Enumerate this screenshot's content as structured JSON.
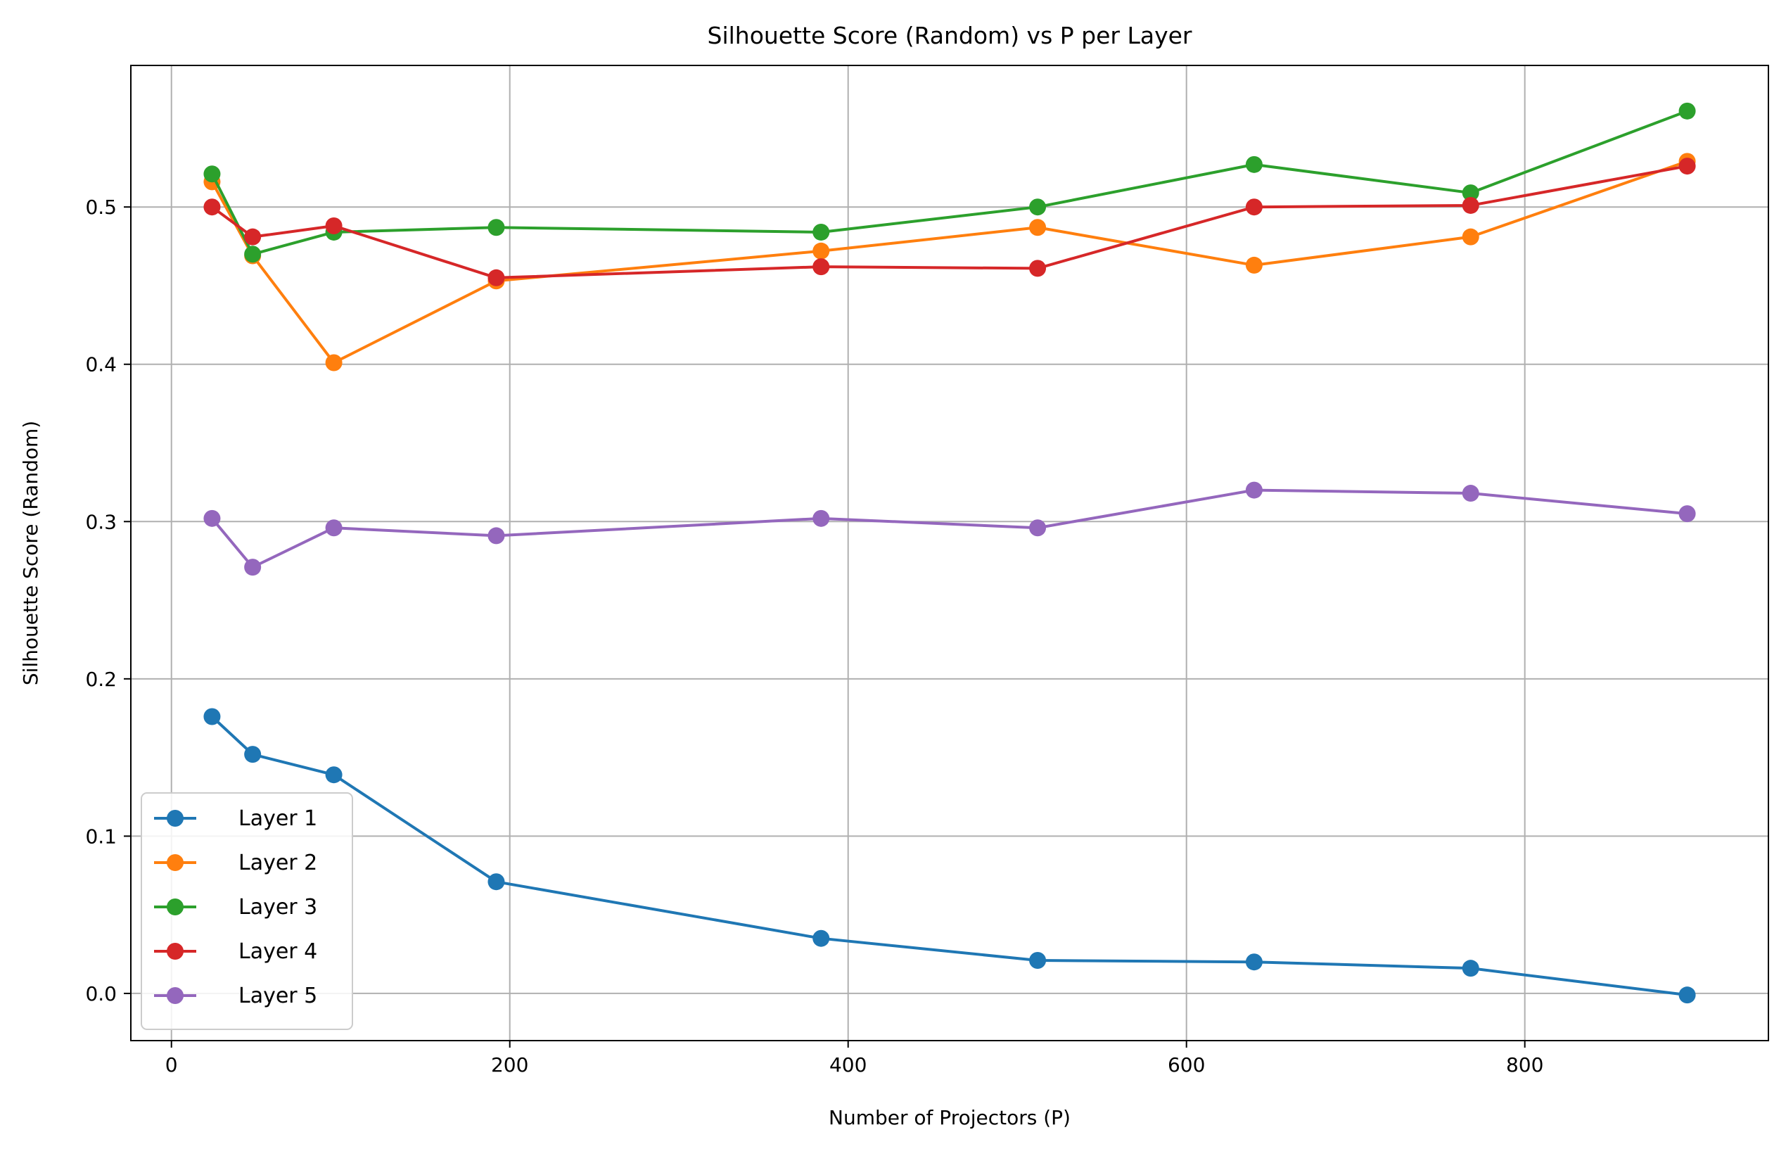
{
  "chart_data": {
    "type": "line",
    "title": "Silhouette Score (Random) vs P per Layer",
    "xlabel": "Number of Projectors (P)",
    "ylabel": "Silhouette Score (Random)",
    "xlim": [
      -24,
      944
    ],
    "ylim": [
      -0.03,
      0.59
    ],
    "xticks": [
      0,
      200,
      400,
      600,
      800
    ],
    "yticks": [
      0.0,
      0.1,
      0.2,
      0.3,
      0.4,
      0.5
    ],
    "ytick_labels": [
      "0.0",
      "0.1",
      "0.2",
      "0.3",
      "0.4",
      "0.5"
    ],
    "grid": true,
    "legend_position": "lower-left",
    "x": [
      24,
      48,
      96,
      192,
      384,
      512,
      640,
      768,
      896
    ],
    "series": [
      {
        "name": "Layer 1",
        "color": "#1f77b4",
        "values": [
          0.176,
          0.152,
          0.139,
          0.071,
          0.035,
          0.021,
          0.02,
          0.016,
          -0.001
        ]
      },
      {
        "name": "Layer 2",
        "color": "#ff7f0e",
        "values": [
          0.516,
          0.469,
          0.401,
          0.453,
          0.472,
          0.487,
          0.463,
          0.481,
          0.529
        ]
      },
      {
        "name": "Layer 3",
        "color": "#2ca02c",
        "values": [
          0.521,
          0.47,
          0.484,
          0.487,
          0.484,
          0.5,
          0.527,
          0.509,
          0.561
        ]
      },
      {
        "name": "Layer 4",
        "color": "#d62728",
        "values": [
          0.5,
          0.481,
          0.488,
          0.455,
          0.462,
          0.461,
          0.5,
          0.501,
          0.526
        ]
      },
      {
        "name": "Layer 5",
        "color": "#9467bd",
        "values": [
          0.302,
          0.271,
          0.296,
          0.291,
          0.302,
          0.296,
          0.32,
          0.318,
          0.305
        ]
      }
    ]
  }
}
